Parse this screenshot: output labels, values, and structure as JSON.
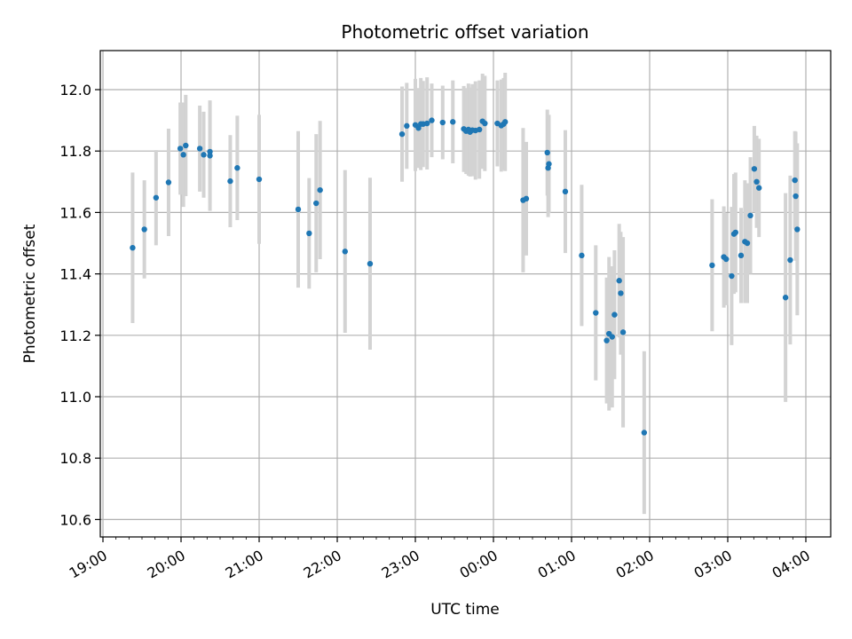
{
  "chart_data": {
    "type": "scatter",
    "title": "Photometric offset variation",
    "xlabel": "UTC time",
    "ylabel": "Photometric offset",
    "x_ticks": [
      "19:00",
      "20:00",
      "21:00",
      "22:00",
      "23:00",
      "00:00",
      "01:00",
      "02:00",
      "03:00",
      "04:00"
    ],
    "y_ticks": [
      "10.6",
      "10.8",
      "11.0",
      "11.2",
      "11.4",
      "11.6",
      "11.8",
      "12.0"
    ],
    "ylim": [
      10.55,
      12.13
    ],
    "grid": true,
    "x_unit": "hours since 19:00 UTC",
    "colors": {
      "point": "#1f77b4",
      "errorbar": "#d3d3d3",
      "grid": "#b0b0b0"
    },
    "series": [
      {
        "x": [
          0.38,
          0.53,
          0.68,
          0.84,
          0.99,
          1.03,
          1.06,
          1.24,
          1.29,
          1.37,
          1.37,
          1.63,
          1.72,
          2.0,
          2.5,
          2.64,
          2.73,
          2.78,
          3.1,
          3.42,
          3.83,
          3.89,
          4.0,
          4.04,
          4.07,
          4.1,
          4.15,
          4.21,
          4.35,
          4.48,
          4.62,
          4.65,
          4.68,
          4.7,
          4.73,
          4.77,
          4.82,
          4.86,
          4.89,
          5.05,
          5.1,
          5.13,
          5.15,
          5.38,
          5.42,
          5.69,
          5.7,
          5.71,
          5.92,
          6.13,
          6.31,
          6.45,
          6.48,
          6.52,
          6.55,
          6.61,
          6.63,
          6.66,
          6.93,
          7.8,
          7.95,
          7.98,
          8.05,
          8.08,
          8.1,
          8.17,
          8.22,
          8.25,
          8.29,
          8.34,
          8.37,
          8.4,
          8.74,
          8.8,
          8.86,
          8.87,
          8.89
        ],
        "y": [
          11.485,
          11.545,
          11.648,
          11.698,
          11.808,
          11.788,
          11.818,
          11.808,
          11.788,
          11.798,
          11.785,
          11.702,
          11.745,
          11.708,
          11.61,
          11.532,
          11.63,
          11.673,
          11.473,
          11.433,
          11.855,
          11.882,
          11.885,
          11.875,
          11.888,
          11.888,
          11.89,
          11.9,
          11.893,
          11.895,
          11.872,
          11.865,
          11.87,
          11.862,
          11.868,
          11.867,
          11.87,
          11.897,
          11.89,
          11.89,
          11.883,
          11.888,
          11.895,
          11.64,
          11.645,
          11.795,
          11.745,
          11.758,
          11.668,
          11.46,
          11.273,
          11.183,
          11.205,
          11.195,
          11.267,
          11.378,
          11.337,
          11.21,
          10.883,
          11.428,
          11.455,
          11.448,
          11.393,
          11.53,
          11.535,
          11.46,
          11.505,
          11.5,
          11.59,
          11.742,
          11.7,
          11.68,
          11.323,
          11.445,
          11.705,
          11.653,
          11.545
        ],
        "yerr": [
          0.245,
          0.16,
          0.155,
          0.175,
          0.15,
          0.17,
          0.165,
          0.14,
          0.14,
          0.165,
          0.18,
          0.15,
          0.17,
          0.21,
          0.255,
          0.18,
          0.225,
          0.225,
          0.265,
          0.28,
          0.155,
          0.14,
          0.15,
          0.13,
          0.15,
          0.14,
          0.15,
          0.12,
          0.12,
          0.135,
          0.14,
          0.14,
          0.15,
          0.145,
          0.15,
          0.16,
          0.16,
          0.155,
          0.155,
          0.14,
          0.15,
          0.15,
          0.16,
          0.235,
          0.185,
          0.14,
          0.16,
          0.16,
          0.2,
          0.23,
          0.22,
          0.205,
          0.25,
          0.23,
          0.21,
          0.185,
          0.2,
          0.31,
          0.265,
          0.215,
          0.165,
          0.15,
          0.225,
          0.195,
          0.195,
          0.155,
          0.2,
          0.195,
          0.19,
          0.14,
          0.15,
          0.16,
          0.34,
          0.275,
          0.16,
          0.21,
          0.28
        ]
      }
    ]
  }
}
